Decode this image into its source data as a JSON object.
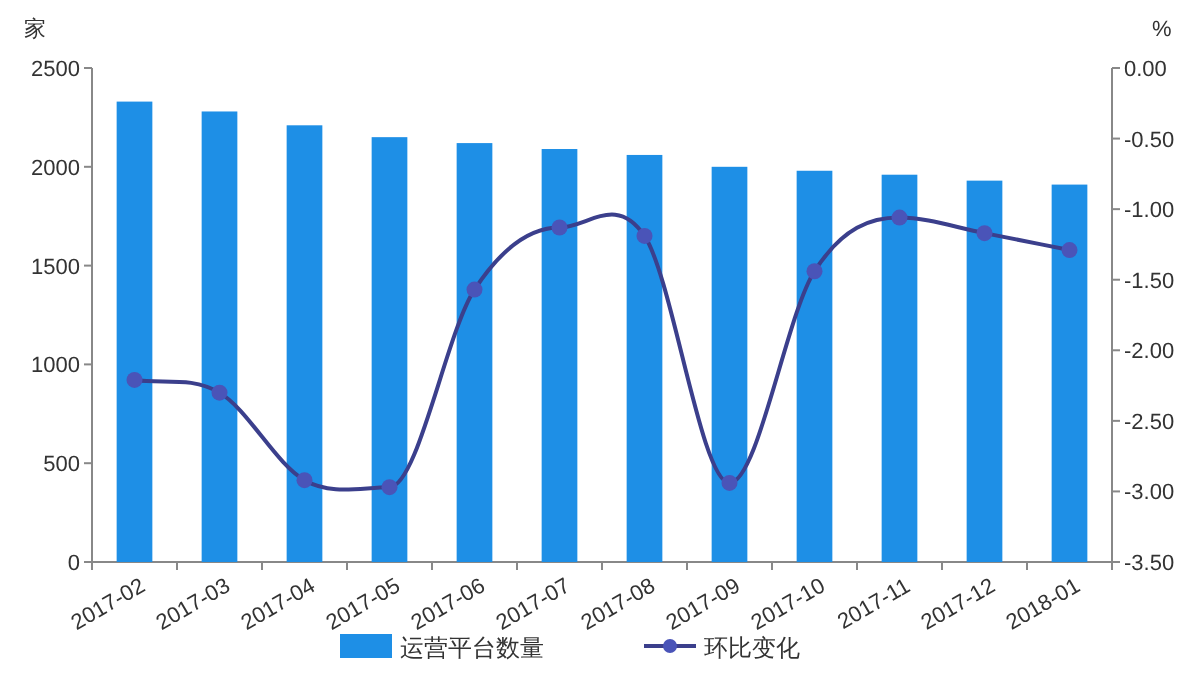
{
  "chart_data": {
    "type": "bar",
    "ylabel": "家",
    "y2label": "%",
    "categories": [
      "2017-02",
      "2017-03",
      "2017-04",
      "2017-05",
      "2017-06",
      "2017-07",
      "2017-08",
      "2017-09",
      "2017-10",
      "2017-11",
      "2017-12",
      "2018-01"
    ],
    "series": [
      {
        "name": "运营平台数量",
        "color": "#1e8fe6",
        "values": [
          2330,
          2280,
          2210,
          2150,
          2120,
          2090,
          2060,
          2000,
          1980,
          1960,
          1930,
          1910
        ]
      },
      {
        "name": "环比变化",
        "type": "line",
        "axis": "y2",
        "color": "#3b3f8c",
        "marker": "circle",
        "values": [
          -2.21,
          -2.3,
          -2.92,
          -2.97,
          -1.57,
          -1.13,
          -1.19,
          -2.94,
          -1.44,
          -1.06,
          -1.17,
          -1.29
        ]
      }
    ],
    "ylim": [
      0,
      2500
    ],
    "yticks": [
      0,
      500,
      1000,
      1500,
      2000,
      2500
    ],
    "y2lim": [
      -3.5,
      0
    ],
    "y2ticks": [
      {
        "value": 0,
        "label": "0.00"
      },
      {
        "value": -0.5,
        "label": "-0.50"
      },
      {
        "value": -1,
        "label": "-1.00"
      },
      {
        "value": -1.5,
        "label": "-1.50"
      },
      {
        "value": -2,
        "label": "-2.00"
      },
      {
        "value": -2.5,
        "label": "-2.50"
      },
      {
        "value": -3,
        "label": "-3.00"
      },
      {
        "value": -3.5,
        "label": "-3.50"
      }
    ],
    "legend": "bottom",
    "grid": false
  }
}
